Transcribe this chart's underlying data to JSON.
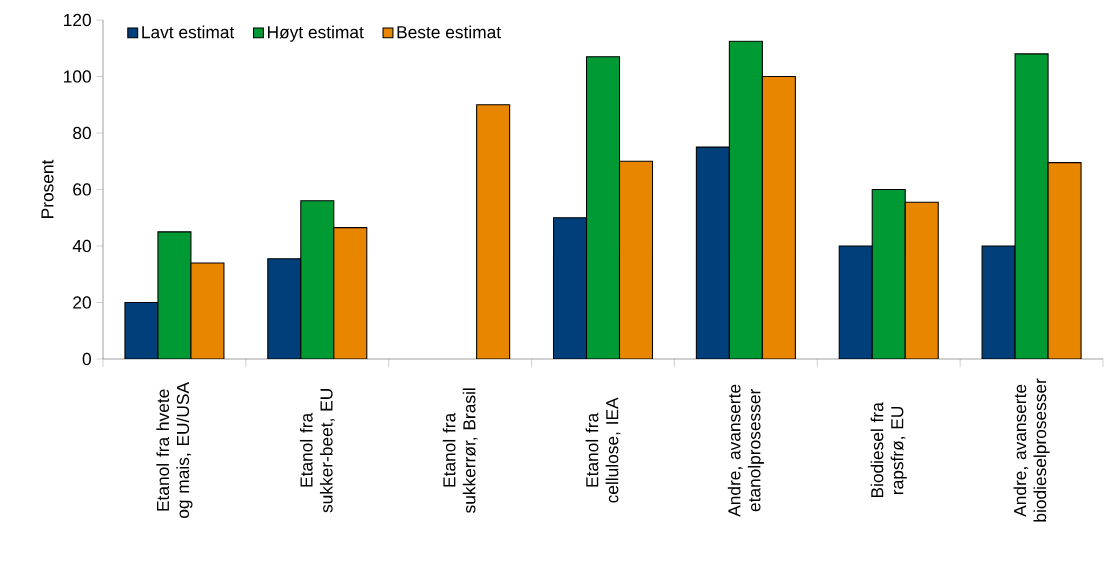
{
  "chart_data": {
    "type": "bar",
    "ylabel": "Prosent",
    "categories": [
      "Etanol fra hvete og mais, EU/USA",
      "Etanol fra sukker-beet, EU",
      "Etanol fra sukkerrør, Brasil",
      "Etanol fra cellulose, IEA",
      "Andre, avanserte etanolprosesser",
      "Biodiesel fra rapsfrø, EU",
      "Andre, avanserte biodieselprosesser"
    ],
    "series": [
      {
        "name": "Lavt estimat",
        "color": "#003f7a",
        "values": [
          20,
          35.5,
          null,
          50,
          75,
          40,
          40
        ]
      },
      {
        "name": "Høyt estimat",
        "color": "#009a35",
        "values": [
          45,
          56,
          null,
          107,
          112.5,
          60,
          108
        ]
      },
      {
        "name": "Beste estimat",
        "color": "#e88600",
        "values": [
          34,
          46.5,
          90,
          70,
          100,
          55.5,
          69.5
        ]
      }
    ],
    "ylim": [
      0,
      120
    ],
    "yticks": [
      0,
      20,
      40,
      60,
      80,
      100,
      120
    ],
    "grid": false,
    "legend": "top left"
  }
}
